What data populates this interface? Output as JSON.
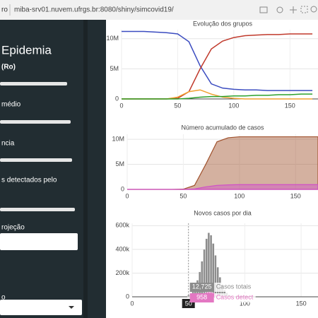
{
  "browser": {
    "tab_text": "ro",
    "url": "miba-srv01.nuvem.ufrgs.br:8080/shiny/simcovid19/"
  },
  "sidebar": {
    "title": "Epidemia",
    "labels": [
      "(Ro)",
      "médio",
      "ncia",
      "s detectados pelo",
      "rojeção",
      "o"
    ]
  },
  "chart_data": [
    {
      "type": "line",
      "title": "Evolução dos grupos",
      "x": [
        0,
        10,
        20,
        30,
        40,
        50,
        60,
        70,
        80,
        90,
        100,
        110,
        120,
        130,
        140,
        150,
        160,
        170
      ],
      "series": [
        {
          "color": "#3b4cc0",
          "values": [
            11200000,
            11200000,
            11200000,
            11100000,
            11000000,
            10800000,
            9500000,
            5500000,
            2500000,
            1800000,
            1600000,
            1500000,
            1500000,
            1400000,
            1400000,
            1400000,
            1400000,
            1400000
          ]
        },
        {
          "color": "#c0392b",
          "values": [
            0,
            0,
            0,
            0,
            0,
            100000,
            1200000,
            5000000,
            8300000,
            9600000,
            10200000,
            10500000,
            10600000,
            10700000,
            10700000,
            10800000,
            10800000,
            10800000
          ]
        },
        {
          "color": "#f0a030",
          "values": [
            0,
            0,
            0,
            0,
            0,
            300000,
            1200000,
            1500000,
            800000,
            300000,
            100000,
            0,
            0,
            0,
            0,
            0,
            0,
            0
          ]
        },
        {
          "color": "#2ca02c",
          "values": [
            0,
            0,
            0,
            0,
            0,
            0,
            100000,
            300000,
            400000,
            400000,
            500000,
            500000,
            600000,
            600000,
            700000,
            700000,
            800000,
            800000
          ]
        }
      ],
      "xlim": [
        0,
        175
      ],
      "xticks": [
        0,
        50,
        100,
        150
      ],
      "ylim": [
        0,
        11500000
      ],
      "yticks": [
        0,
        {
          "value": 5000000,
          "label": "5M"
        },
        {
          "value": 10000000,
          "label": "10M"
        }
      ],
      "grid": true
    },
    {
      "type": "area",
      "title": "Número acumulado de casos",
      "x": [
        0,
        10,
        20,
        30,
        40,
        50,
        60,
        70,
        80,
        90,
        100,
        110,
        120,
        130,
        140,
        150,
        160,
        170
      ],
      "series": [
        {
          "color": "#a0522d",
          "values": [
            0,
            0,
            0,
            0,
            0,
            50000,
            800000,
            5000000,
            9500000,
            10300000,
            10500000,
            10500000,
            10500000,
            10500000,
            10500000,
            10500000,
            10500000,
            10500000
          ]
        },
        {
          "color": "#d04fc8",
          "values": [
            0,
            0,
            0,
            0,
            0,
            0,
            100000,
            500000,
            800000,
            900000,
            950000,
            950000,
            950000,
            950000,
            950000,
            950000,
            950000,
            950000
          ]
        }
      ],
      "xlim": [
        0,
        170
      ],
      "xticks": [
        0,
        50,
        100,
        150
      ],
      "ylim": [
        0,
        11000000
      ],
      "yticks": [
        0,
        {
          "value": 5000000,
          "label": "5M"
        },
        {
          "value": 10000000,
          "label": "10M"
        }
      ],
      "grid": true
    },
    {
      "type": "bar",
      "title": "Novos casos por dia",
      "x": [
        50,
        52,
        54,
        56,
        58,
        60,
        62,
        64,
        66,
        68,
        70,
        72,
        74,
        76,
        78,
        80,
        82,
        84,
        86,
        88,
        90
      ],
      "series": [
        {
          "color": "#8c8c8c",
          "values": [
            12725,
            25000,
            48000,
            85000,
            140000,
            210000,
            300000,
            400000,
            490000,
            540000,
            520000,
            450000,
            350000,
            250000,
            165000,
            100000,
            58000,
            32000,
            17000,
            9000,
            4500
          ]
        },
        {
          "color": "#e377c2",
          "values": [
            958,
            1900,
            3600,
            6400,
            10500,
            15800,
            22500,
            30000,
            36800,
            40500,
            39000,
            33800,
            26300,
            18800,
            12400,
            7500,
            4400,
            2400,
            1300,
            700,
            340
          ]
        }
      ],
      "xlim": [
        0,
        165
      ],
      "xticks": [
        0,
        50,
        100,
        150
      ],
      "ylim": [
        0,
        620000
      ],
      "yticks": [
        0,
        {
          "value": 200000,
          "label": "200k"
        },
        {
          "value": 400000,
          "label": "400k"
        },
        {
          "value": 600000,
          "label": "600k"
        }
      ],
      "grid": true,
      "tooltip": {
        "x": 50,
        "values": [
          12725,
          958
        ],
        "value_labels": [
          "12,725",
          "958"
        ],
        "names": [
          "Casos totais",
          "Casos detect"
        ]
      }
    }
  ]
}
